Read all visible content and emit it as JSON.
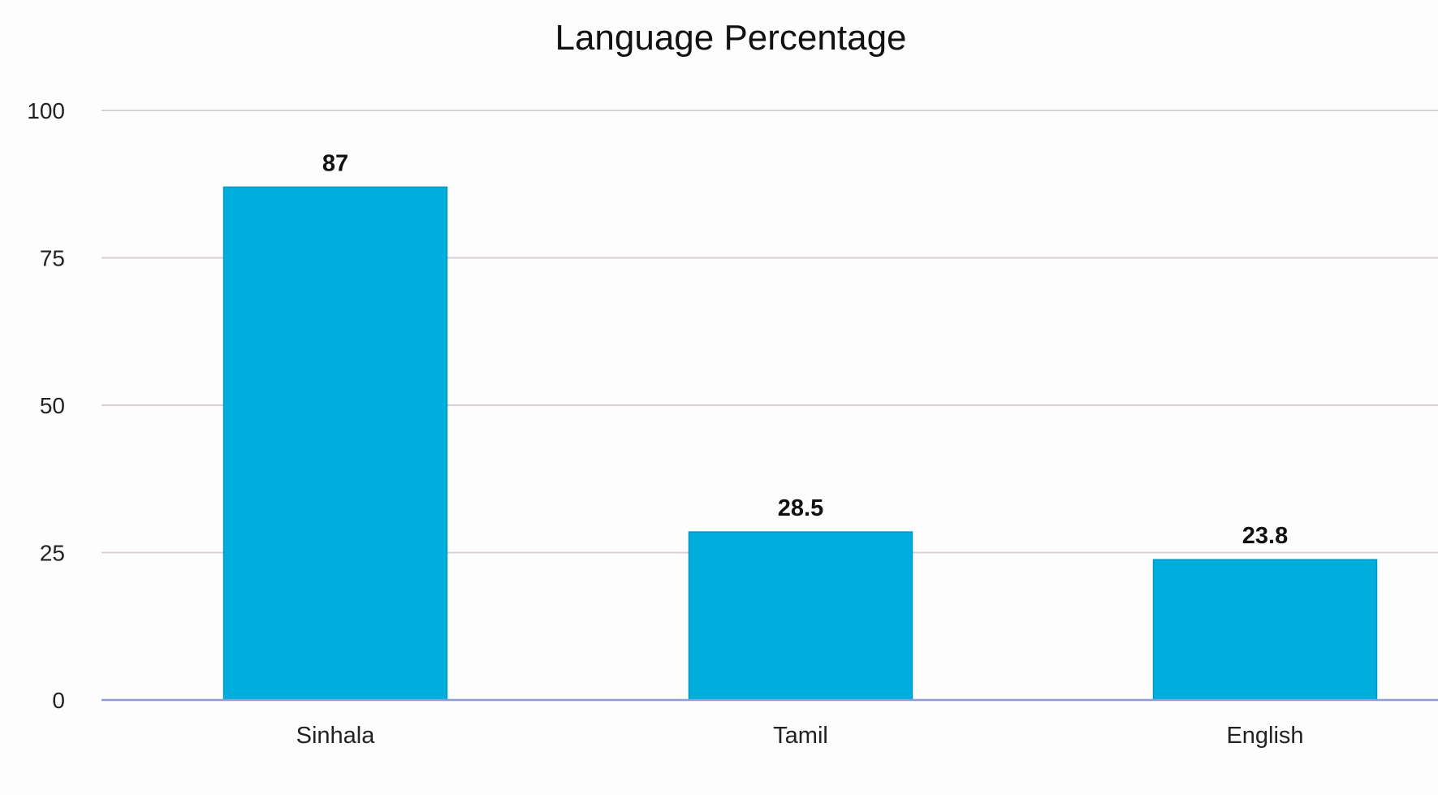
{
  "chart_data": {
    "type": "bar",
    "title": "Language Percentage",
    "xlabel": "",
    "ylabel": "",
    "categories": [
      "Sinhala",
      "Tamil",
      "English"
    ],
    "values": [
      87,
      28.5,
      23.8
    ],
    "data_labels": [
      "87",
      "28.5",
      "23.8"
    ],
    "yticks": [
      0,
      25,
      50,
      75,
      100
    ],
    "ytick_labels": [
      "0",
      "25",
      "50",
      "75",
      "100"
    ],
    "ylim": [
      0,
      100
    ],
    "grid": true,
    "legend": "none",
    "colors": {
      "bar": "#00AEDD",
      "bar_edge": "#0098C4",
      "grid": "#D9CFD6",
      "baseline": "#8E9BD4"
    }
  }
}
